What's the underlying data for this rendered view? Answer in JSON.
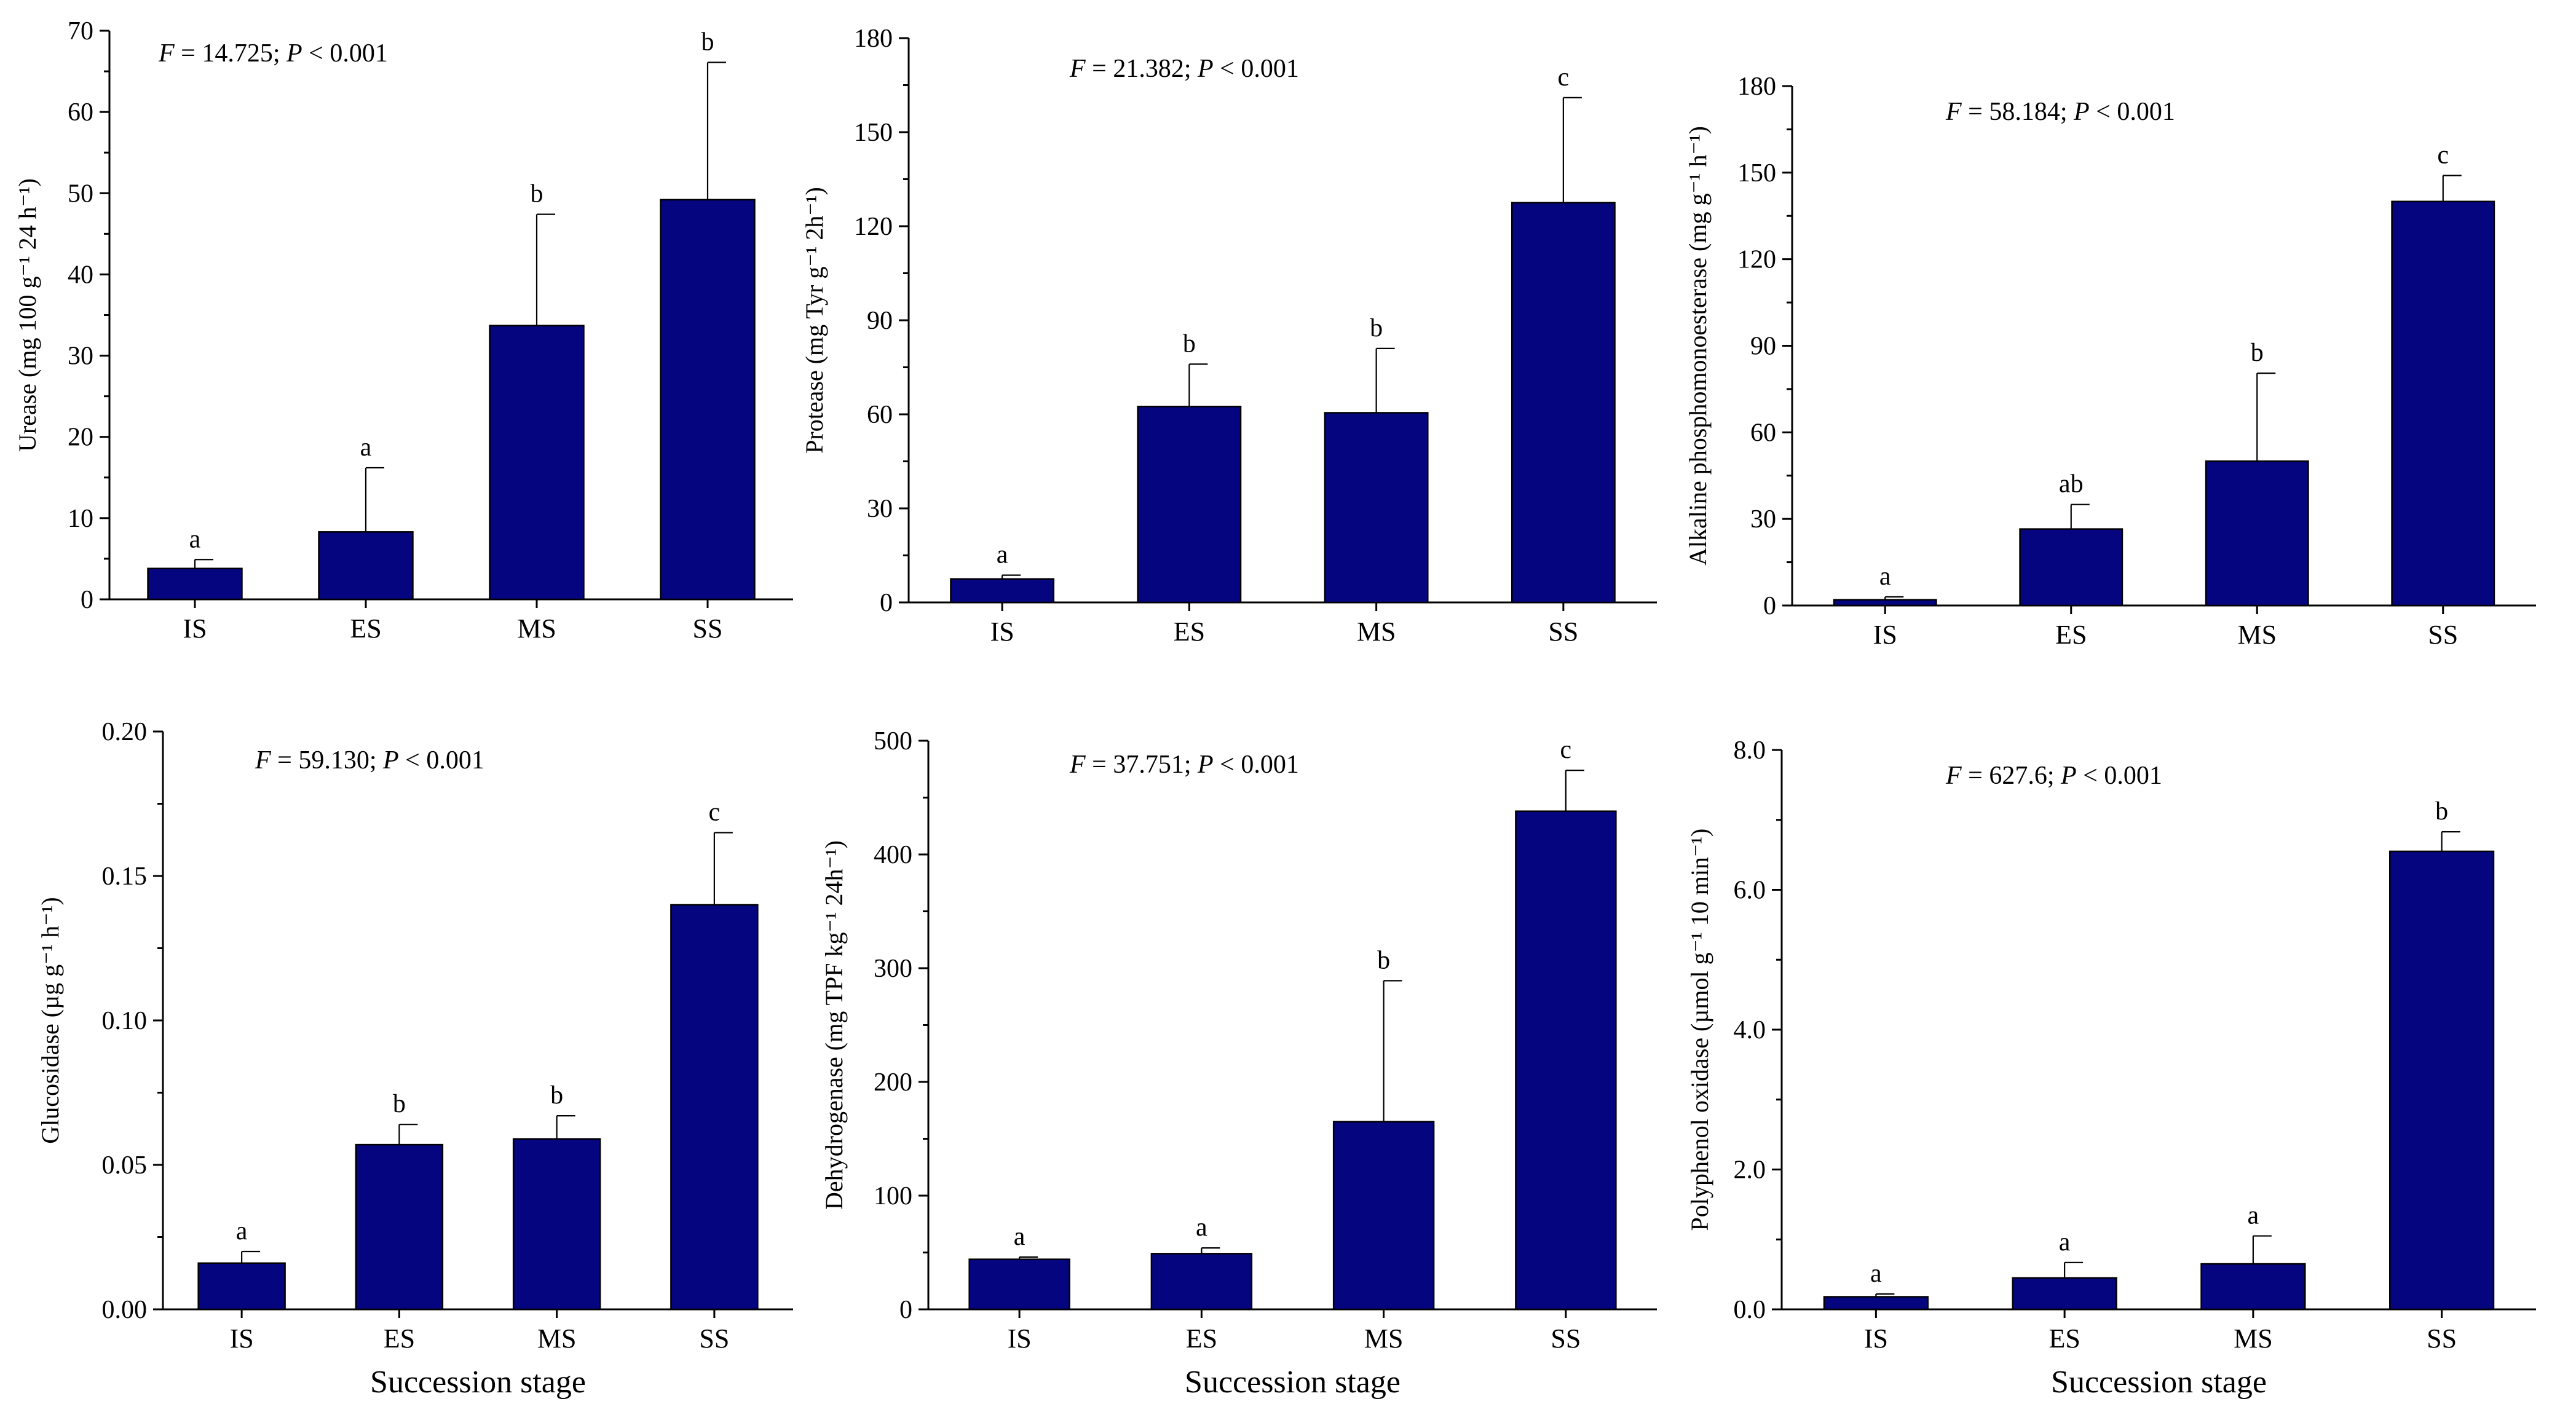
{
  "colors": {
    "bar_fill": "#050580",
    "axis": "#000000",
    "text": "#000000"
  },
  "chart_data": [
    {
      "type": "bar",
      "categories": [
        "IS",
        "ES",
        "MS",
        "SS"
      ],
      "values": [
        3.8,
        8.3,
        33.7,
        49.2
      ],
      "errors": [
        1.1,
        7.9,
        13.7,
        16.9
      ],
      "sig_letters": [
        "a",
        "a",
        "b",
        "b"
      ],
      "ylabel": "Urease (mg 100 g⁻¹ 24 h⁻¹)",
      "xlabel": "",
      "ylim": [
        0,
        70
      ],
      "yticks": [
        0,
        10,
        20,
        30,
        40,
        50,
        60,
        70
      ],
      "tick_decimals": 0,
      "stat": {
        "F_symbol": "F",
        "F_text": " = 14.725; ",
        "P_symbol": "P",
        "P_text": " < 0.001"
      }
    },
    {
      "type": "bar",
      "categories": [
        "IS",
        "ES",
        "MS",
        "SS"
      ],
      "values": [
        7.5,
        62.5,
        60.5,
        127.5
      ],
      "errors": [
        1.2,
        13.5,
        20.5,
        33.5
      ],
      "sig_letters": [
        "a",
        "b",
        "b",
        "c"
      ],
      "ylabel": "Protease (mg  Tyr g⁻¹ 2h⁻¹)",
      "xlabel": "",
      "ylim": [
        0,
        180
      ],
      "yticks": [
        0,
        30,
        60,
        90,
        120,
        150,
        180
      ],
      "tick_decimals": 0,
      "stat": {
        "F_symbol": "F",
        "F_text": " = 21.382; ",
        "P_symbol": "P",
        "P_text": " < 0.001"
      }
    },
    {
      "type": "bar",
      "categories": [
        "IS",
        "ES",
        "MS",
        "SS"
      ],
      "values": [
        2.0,
        26.5,
        50.0,
        140.0
      ],
      "errors": [
        1.0,
        8.5,
        30.5,
        9.0
      ],
      "sig_letters": [
        "a",
        "ab",
        "b",
        "c"
      ],
      "ylabel": "Alkaline phosphomonoesterase (mg g⁻¹ h⁻¹)",
      "xlabel": "",
      "ylim": [
        0,
        180
      ],
      "yticks": [
        0,
        30,
        60,
        90,
        120,
        150,
        180
      ],
      "tick_decimals": 0,
      "stat": {
        "F_symbol": "F",
        "F_text": " = 58.184; ",
        "P_symbol": "P",
        "P_text": " < 0.001"
      }
    },
    {
      "type": "bar",
      "categories": [
        "IS",
        "ES",
        "MS",
        "SS"
      ],
      "values": [
        0.016,
        0.057,
        0.059,
        0.14
      ],
      "errors": [
        0.004,
        0.007,
        0.008,
        0.025
      ],
      "sig_letters": [
        "a",
        "b",
        "b",
        "c"
      ],
      "ylabel": "Glucosidase (µg g⁻¹ h⁻¹)",
      "xlabel": "Succession stage",
      "ylim": [
        0,
        0.2
      ],
      "yticks": [
        0,
        0.05,
        0.1,
        0.15,
        0.2
      ],
      "tick_decimals": 2,
      "stat": {
        "F_symbol": "F",
        "F_text": " = 59.130; ",
        "P_symbol": "P",
        "P_text": " < 0.001"
      }
    },
    {
      "type": "bar",
      "categories": [
        "IS",
        "ES",
        "MS",
        "SS"
      ],
      "values": [
        44,
        49,
        165,
        438
      ],
      "errors": [
        2,
        5,
        124,
        36
      ],
      "sig_letters": [
        "a",
        "a",
        "b",
        "c"
      ],
      "ylabel": "Dehydrogenase (mg TPF kg⁻¹ 24h⁻¹)",
      "xlabel": "Succession stage",
      "ylim": [
        0,
        500
      ],
      "yticks": [
        0,
        100,
        200,
        300,
        400,
        500
      ],
      "tick_decimals": 0,
      "stat": {
        "F_symbol": "F",
        "F_text": " = 37.751; ",
        "P_symbol": "P",
        "P_text": " < 0.001"
      }
    },
    {
      "type": "bar",
      "categories": [
        "IS",
        "ES",
        "MS",
        "SS"
      ],
      "values": [
        0.18,
        0.45,
        0.65,
        6.55
      ],
      "errors": [
        0.04,
        0.22,
        0.4,
        0.28
      ],
      "sig_letters": [
        "a",
        "a",
        "a",
        "b"
      ],
      "ylabel": "Polyphenol oxidase (µmol g⁻¹ 10 min⁻¹)",
      "xlabel": "Succession stage",
      "ylim": [
        0,
        8
      ],
      "yticks": [
        0,
        2,
        4,
        6,
        8
      ],
      "tick_decimals": 1,
      "stat": {
        "F_symbol": "F",
        "F_text": " = 627.6; ",
        "P_symbol": "P",
        "P_text": " < 0.001"
      }
    }
  ]
}
